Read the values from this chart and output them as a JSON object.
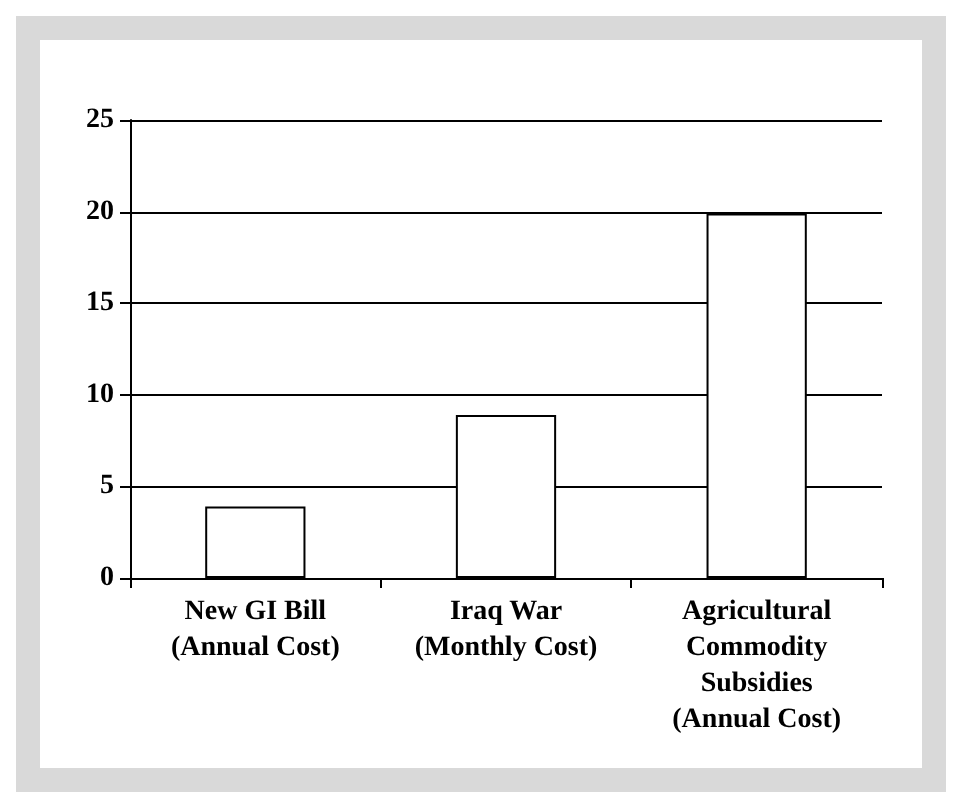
{
  "chart_data": {
    "type": "bar",
    "categories": [
      "New GI Bill\n(Annual Cost)",
      "Iraq War\n(Monthly Cost)",
      "Agricultural\nCommodity\nSubsidies\n(Annual Cost)"
    ],
    "values": [
      3.9,
      8.9,
      19.9
    ],
    "color": "#ffffff",
    "ylim": [
      0,
      25
    ],
    "yticks": [
      0,
      5,
      10,
      15,
      20,
      25
    ],
    "grid": "y"
  }
}
